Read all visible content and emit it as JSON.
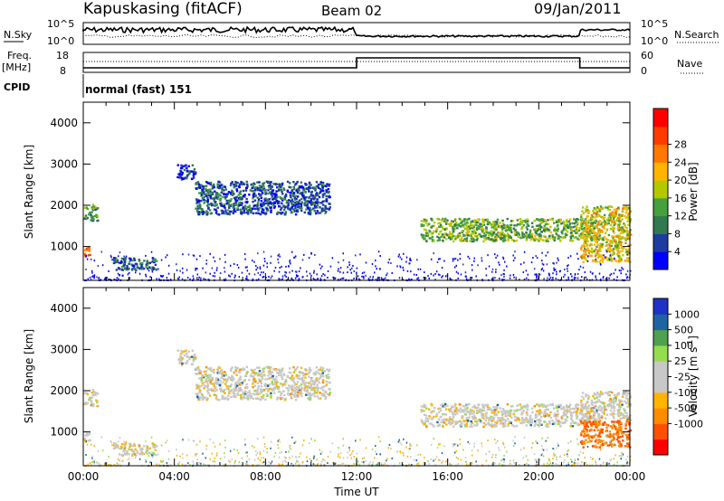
{
  "header": {
    "station": "Kapuskasing (fitACF)",
    "beam": "Beam 02",
    "date": "09/Jan/2011"
  },
  "summary": {
    "nsky_label": "N.Sky",
    "nsky_ticks": [
      "10^5",
      "10^0"
    ],
    "nsearch_label": "N.Search",
    "nsearch_ticks": [
      "10^5",
      "10^0"
    ],
    "freq_label": "Freq.",
    "freq_unit": "[MHz]",
    "freq_ticks": [
      "18",
      "8"
    ],
    "nave_label": "Nave",
    "nave_ticks": [
      "60",
      "0"
    ],
    "cpid_label": "CPID",
    "cpid_value": "normal (fast) 151"
  },
  "colors": {
    "power_scale": [
      "#0000ff",
      "#1e3ca0",
      "#327850",
      "#46a03c",
      "#b4c800",
      "#ffb400",
      "#ff7800",
      "#ff3c00",
      "#ff0000"
    ],
    "velocity_scale": [
      "#1e32c8",
      "#1e64a0",
      "#50a050",
      "#96dc50",
      "#c8c8c8",
      "#c8c8c8",
      "#ffb400",
      "#ff8c00",
      "#ff5000",
      "#ff0000"
    ]
  },
  "chart_data": [
    {
      "type": "heatmap",
      "name": "power",
      "ylabel": "Slant Range [km]",
      "ylim": [
        180,
        4500
      ],
      "yticks": [
        "1000",
        "2000",
        "3000",
        "4000"
      ],
      "xlim": [
        0,
        24
      ],
      "colorbar_label": "Power [dB]",
      "colorbar_ticks": [
        "4",
        "8",
        "12",
        "16",
        "20",
        "24",
        "28"
      ],
      "colorbar_range": [
        0,
        32
      ],
      "features": [
        {
          "t": [
            0.0,
            0.6
          ],
          "r": [
            1650,
            2050
          ],
          "level": 0.35
        },
        {
          "t": [
            0.0,
            0.3
          ],
          "r": [
            750,
            1000
          ],
          "level": 0.8
        },
        {
          "t": [
            1.3,
            3.2
          ],
          "r": [
            450,
            750
          ],
          "level": 0.25
        },
        {
          "t": [
            4.1,
            4.9
          ],
          "r": [
            2650,
            3000
          ],
          "level": 0.15
        },
        {
          "t": [
            4.9,
            10.8
          ],
          "r": [
            1800,
            2600
          ],
          "level": 0.2
        },
        {
          "t": [
            14.8,
            22.5
          ],
          "r": [
            1150,
            1700
          ],
          "level": 0.4
        },
        {
          "t": [
            21.8,
            24.0
          ],
          "r": [
            650,
            2000
          ],
          "level": 0.55
        }
      ]
    },
    {
      "type": "heatmap",
      "name": "velocity",
      "ylabel": "Slant Range [km]",
      "ylim": [
        180,
        4500
      ],
      "yticks": [
        "1000",
        "2000",
        "3000",
        "4000"
      ],
      "xlim": [
        0,
        24
      ],
      "xticks": [
        "00:00",
        "04:00",
        "08:00",
        "12:00",
        "16:00",
        "20:00",
        "00:00"
      ],
      "xlabel": "Time UT",
      "colorbar_label": "Velocity [m s",
      "colorbar_sup": "-1",
      "colorbar_ticks": [
        "1000",
        "500",
        "100",
        "25",
        "-25",
        "-100",
        "-500",
        "-1000"
      ]
    }
  ]
}
